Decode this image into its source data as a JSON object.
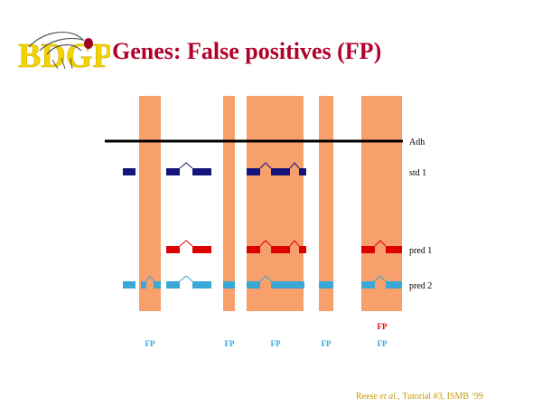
{
  "slide": {
    "title": "Genes: False positives (FP)",
    "logo_text": "BDGP",
    "footer": {
      "authors_plain": "Reese ",
      "authors_italic": "et al.",
      "rest": ", Tutorial #3, ISMB ‘99"
    }
  },
  "colors": {
    "fp_band": "#f7a06c",
    "std": "#14147a",
    "pred1": "#dd0000",
    "pred2": "#3aa8d6",
    "title": "#b2002b",
    "footer": "#c49a00",
    "logo_yellow": "#f3d400"
  },
  "tracks": [
    {
      "id": "adh",
      "label": "Adh"
    },
    {
      "id": "std1",
      "label": "std 1"
    },
    {
      "id": "pred1",
      "label": "pred 1"
    },
    {
      "id": "pred2",
      "label": "pred 2"
    }
  ],
  "fp_labels": {
    "pred1": [
      "FP"
    ],
    "pred2": [
      "FP",
      "FP",
      "FP",
      "FP",
      "FP"
    ]
  }
}
